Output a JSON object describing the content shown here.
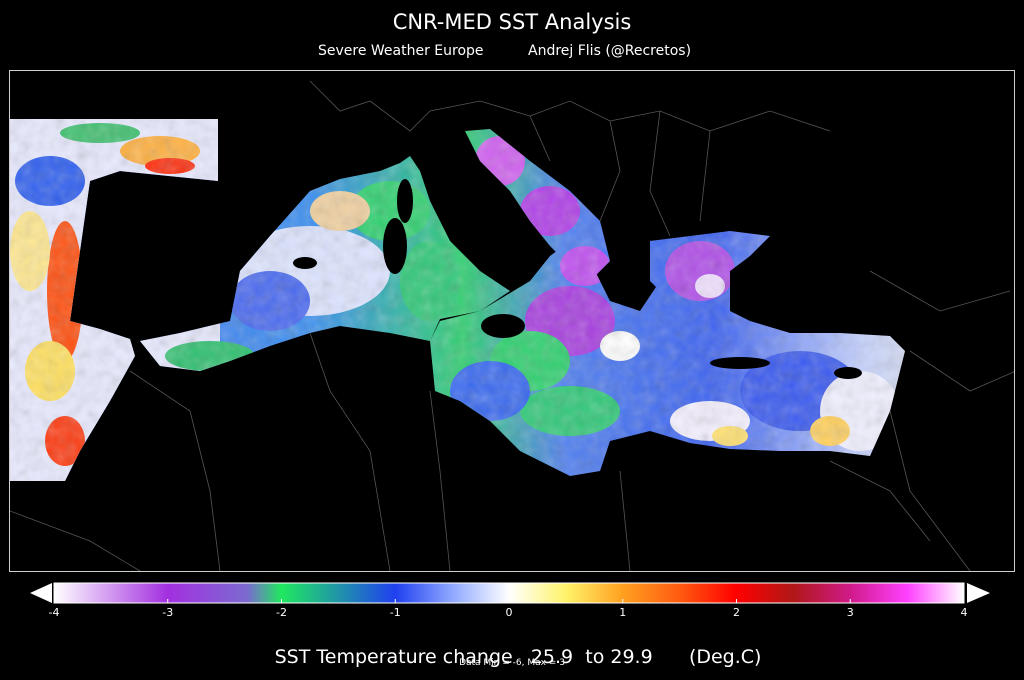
{
  "header": {
    "title": "CNR-MED SST Analysis",
    "subtitle_left": "Severe Weather Europe",
    "subtitle_right": "Andrej Flis  (@Recretos)"
  },
  "map": {
    "region": "Mediterranean Sea",
    "background_color": "#000000",
    "border_color": "#9a9a9a"
  },
  "colorbar": {
    "ticks": [
      "-4",
      "-3",
      "-2",
      "-1",
      "0",
      "1",
      "2",
      "3",
      "4"
    ],
    "min": -4,
    "max": 4,
    "stops": [
      {
        "v": -4,
        "color": "#ffffff"
      },
      {
        "v": -3,
        "color": "#a330e0"
      },
      {
        "v": -2.3,
        "color": "#7b6ad0"
      },
      {
        "v": -2,
        "color": "#20e860"
      },
      {
        "v": -1,
        "color": "#2040f0"
      },
      {
        "v": -0.5,
        "color": "#8fa8ff"
      },
      {
        "v": 0,
        "color": "#ffffff"
      },
      {
        "v": 0.5,
        "color": "#fff36a"
      },
      {
        "v": 1,
        "color": "#ffa020"
      },
      {
        "v": 1.5,
        "color": "#ff5a10"
      },
      {
        "v": 2,
        "color": "#ff0000"
      },
      {
        "v": 2.5,
        "color": "#b01818"
      },
      {
        "v": 3,
        "color": "#d01a8a"
      },
      {
        "v": 3.5,
        "color": "#ff40ff"
      },
      {
        "v": 4,
        "color": "#ffffff"
      }
    ],
    "label_main": "SST Temperature change",
    "range_from": "25.9",
    "range_to_label": "to",
    "range_to": "29.9",
    "unit": "(Deg.C)"
  },
  "footnote": "Data Min = -6, Max = 3"
}
